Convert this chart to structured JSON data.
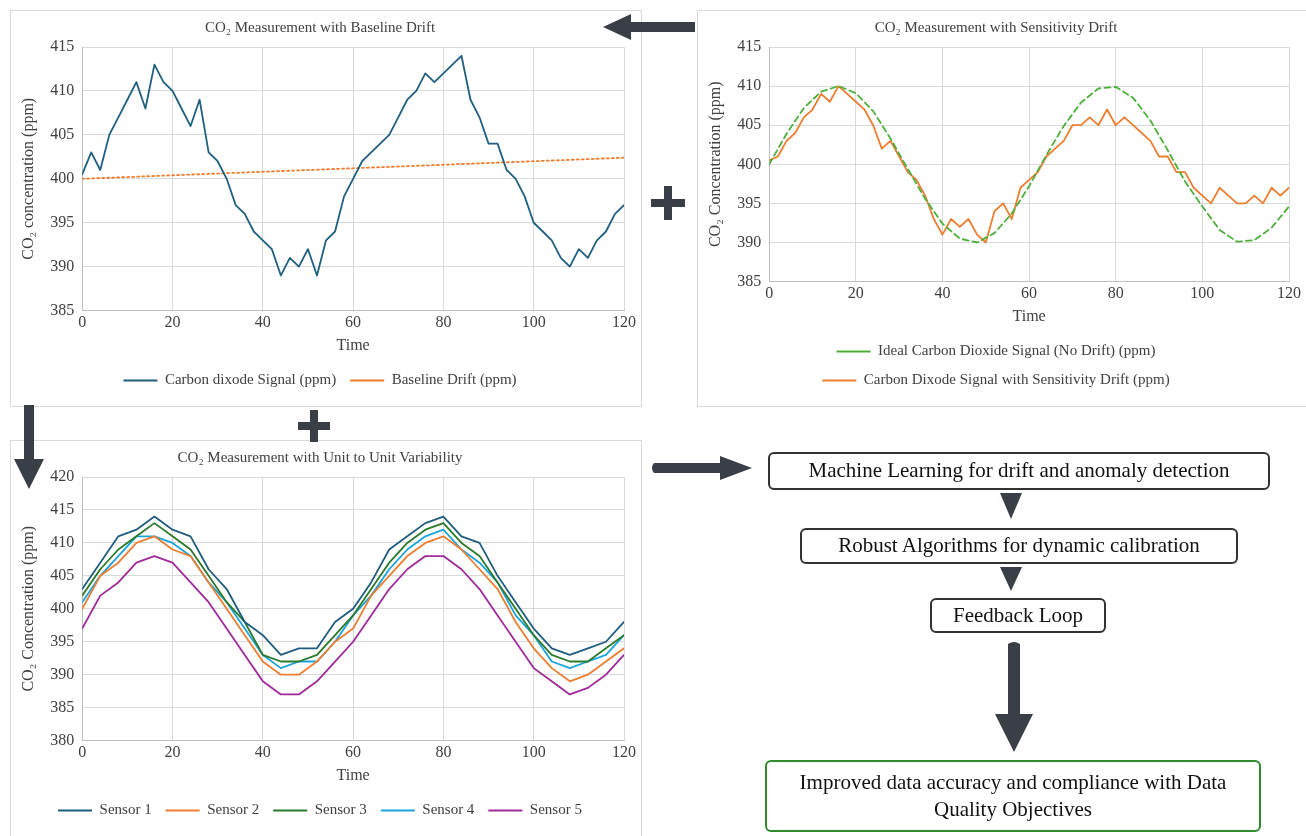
{
  "chart_data": [
    {
      "type": "line",
      "title": "CO₂ Measurement with Baseline Drift",
      "xlabel": "Time",
      "ylabel": "CO₂ concentration (ppm)",
      "x": [
        0,
        2,
        4,
        6,
        8,
        10,
        12,
        14,
        16,
        18,
        20,
        22,
        24,
        26,
        28,
        30,
        32,
        34,
        36,
        38,
        40,
        42,
        44,
        46,
        48,
        50,
        52,
        54,
        56,
        58,
        60,
        62,
        64,
        66,
        68,
        70,
        72,
        74,
        76,
        78,
        80,
        82,
        84,
        86,
        88,
        90,
        92,
        94,
        96,
        98,
        100,
        102,
        104,
        106,
        108,
        110,
        112,
        114,
        116,
        118,
        120
      ],
      "series": [
        {
          "name": "Carbon dixode Signal (ppm)",
          "color": "#1f5f80",
          "values": [
            400.5,
            403,
            401,
            405,
            407,
            409,
            411,
            408,
            413,
            411,
            410,
            408,
            406,
            409,
            403,
            402,
            400,
            397,
            396,
            394,
            393,
            392,
            389,
            391,
            390,
            392,
            389,
            393,
            394,
            398,
            400,
            402,
            403,
            404,
            405,
            407,
            409,
            410,
            412,
            411,
            412,
            413,
            414,
            409,
            407,
            404,
            404,
            401,
            400,
            398,
            395,
            394,
            393,
            391,
            390,
            392,
            391,
            393,
            394,
            396,
            397
          ]
        },
        {
          "name": "Baseline Drift (ppm)",
          "color": "#f07c2a",
          "line_style": "dotted",
          "x": [
            0,
            120
          ],
          "values": [
            400,
            402.4
          ]
        }
      ],
      "xlim": [
        0,
        120
      ],
      "ylim": [
        385,
        415
      ],
      "xticks": [
        0,
        20,
        40,
        60,
        80,
        100,
        120
      ],
      "yticks": [
        385,
        390,
        395,
        400,
        405,
        410,
        415
      ],
      "grid": true,
      "legend": "bottom",
      "marker": "none"
    },
    {
      "type": "line",
      "title": "CO₂ Measurement with Sensitivity Drift",
      "xlabel": "Time",
      "ylabel": "CO₂ Concentration (ppm)",
      "series": [
        {
          "name": "Ideal Carbon Dioxide Signal (No Drift) (ppm)",
          "color": "#4caf3a",
          "line_style": "dashed",
          "x": [
            0,
            4,
            8,
            12,
            16,
            20,
            24,
            28,
            32,
            36,
            40,
            44,
            48,
            52,
            56,
            60,
            64,
            68,
            72,
            76,
            80,
            84,
            88,
            92,
            96,
            100,
            104,
            108,
            112,
            116,
            120
          ],
          "values": [
            400,
            403.9,
            407.2,
            409.3,
            410,
            409.1,
            406.8,
            403.3,
            399.4,
            395.6,
            392.4,
            390.5,
            390,
            391.2,
            393.7,
            397.2,
            401.2,
            404.9,
            407.9,
            409.7,
            409.9,
            408.5,
            405.6,
            401.8,
            397.8,
            394.6,
            391.6,
            390.1,
            390.3,
            391.9,
            394.6
          ]
        },
        {
          "name": "Carbon Dixode Signal with Sensitivity Drift (ppm)",
          "color": "#ed7d31",
          "x": [
            0,
            2,
            4,
            6,
            8,
            10,
            12,
            14,
            16,
            18,
            20,
            22,
            24,
            26,
            28,
            30,
            32,
            34,
            36,
            38,
            40,
            42,
            44,
            46,
            48,
            50,
            52,
            54,
            56,
            58,
            60,
            62,
            64,
            66,
            68,
            70,
            72,
            74,
            76,
            78,
            80,
            82,
            84,
            86,
            88,
            90,
            92,
            94,
            96,
            98,
            100,
            102,
            104,
            106,
            108,
            110,
            112,
            114,
            116,
            118,
            120
          ],
          "values": [
            400.5,
            401,
            403,
            404,
            406,
            407,
            409,
            408,
            410,
            409,
            408,
            407,
            405,
            402,
            403,
            401,
            399,
            398,
            396,
            393,
            391,
            393,
            392,
            393,
            391,
            390,
            394,
            395,
            393,
            397,
            398,
            399,
            401,
            402,
            403,
            405,
            405,
            406,
            405,
            407,
            405,
            406,
            405,
            404,
            403,
            401,
            401,
            399,
            399,
            397,
            396,
            395,
            397,
            396,
            395,
            395,
            396,
            395,
            397,
            396,
            397
          ]
        }
      ],
      "xlim": [
        0,
        120
      ],
      "ylim": [
        385,
        415
      ],
      "xticks": [
        0,
        20,
        40,
        60,
        80,
        100,
        120
      ],
      "yticks": [
        385,
        390,
        395,
        400,
        405,
        410,
        415
      ],
      "grid": true,
      "legend": "bottom",
      "marker": "none"
    },
    {
      "type": "line",
      "title": "CO₂ Measurement with Unit to Unit Variability",
      "xlabel": "Time",
      "ylabel": "CO₂ Concentration (ppm)",
      "x": [
        0,
        4,
        8,
        12,
        16,
        20,
        24,
        28,
        32,
        36,
        40,
        44,
        48,
        52,
        56,
        60,
        64,
        68,
        72,
        76,
        80,
        84,
        88,
        92,
        96,
        100,
        104,
        108,
        112,
        116,
        120
      ],
      "series": [
        {
          "name": "Sensor 1",
          "color": "#1f5c80",
          "values": [
            403,
            407,
            411,
            412,
            414,
            412,
            411,
            406,
            403,
            398,
            396,
            393,
            394,
            394,
            398,
            400,
            404,
            409,
            411,
            413,
            414,
            411,
            410,
            405,
            401,
            397,
            394,
            393,
            394,
            395,
            398
          ]
        },
        {
          "name": "Sensor 2",
          "color": "#ed7d31",
          "values": [
            400,
            405,
            407,
            410,
            411,
            409,
            408,
            404,
            400,
            396,
            392,
            390,
            390,
            392,
            395,
            397,
            402,
            405,
            408,
            410,
            411,
            409,
            406,
            403,
            398,
            394,
            391,
            389,
            390,
            392,
            394
          ]
        },
        {
          "name": "Sensor 3",
          "color": "#2a7a2a",
          "values": [
            402,
            406,
            409,
            411,
            413,
            411,
            409,
            405,
            401,
            398,
            393,
            392,
            392,
            393,
            396,
            399,
            403,
            407,
            410,
            412,
            413,
            410,
            408,
            404,
            400,
            396,
            393,
            392,
            392,
            394,
            396
          ]
        },
        {
          "name": "Sensor 4",
          "color": "#1ba3dc",
          "values": [
            401,
            405,
            408,
            411,
            411,
            410,
            408,
            404,
            401,
            397,
            393,
            391,
            392,
            392,
            395,
            399,
            402,
            406,
            409,
            411,
            412,
            409,
            407,
            404,
            399,
            396,
            392,
            391,
            392,
            393,
            396
          ]
        },
        {
          "name": "Sensor 5",
          "color": "#a0289a",
          "values": [
            397,
            402,
            404,
            407,
            408,
            407,
            404,
            401,
            397,
            393,
            389,
            387,
            387,
            389,
            392,
            395,
            399,
            403,
            406,
            408,
            408,
            406,
            403,
            399,
            395,
            391,
            389,
            387,
            388,
            390,
            393
          ]
        }
      ],
      "xlim": [
        0,
        120
      ],
      "ylim": [
        380,
        420
      ],
      "xticks": [
        0,
        20,
        40,
        60,
        80,
        100,
        120
      ],
      "yticks": [
        380,
        385,
        390,
        395,
        400,
        405,
        410,
        415,
        420
      ],
      "grid": true,
      "legend": "bottom",
      "marker": "none"
    },
    {
      "type": "other",
      "annotations": [
        "Machine Learning for drift and anomaly detection",
        "Robust Algorithms for dynamic calibration",
        "Feedback Loop",
        "Improved data accuracy and compliance with Data Quality Objectives"
      ]
    }
  ]
}
